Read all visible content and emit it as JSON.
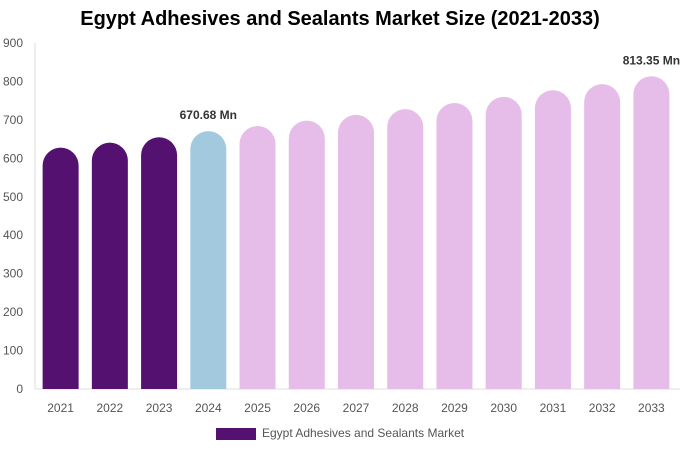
{
  "chart_data": {
    "type": "bar",
    "title": "Egypt Adhesives and Sealants Market Size (2021-2033)",
    "categories": [
      "2021",
      "2022",
      "2023",
      "2024",
      "2025",
      "2026",
      "2027",
      "2028",
      "2029",
      "2030",
      "2031",
      "2032",
      "2033"
    ],
    "series": [
      {
        "name": "Egypt Adhesives and Sealants Market",
        "values": [
          628,
          641,
          655,
          670.68,
          684,
          698,
          713,
          728,
          744,
          760,
          777,
          793,
          813.35
        ]
      }
    ],
    "data_labels": [
      {
        "index": 3,
        "text": "670.68 Mn"
      },
      {
        "index": 12,
        "text": "813.35 Mn"
      }
    ],
    "ylim": [
      0,
      900
    ],
    "yticks": [
      0,
      100,
      200,
      300,
      400,
      500,
      600,
      700,
      800,
      900
    ],
    "grid": false,
    "legend": "bottom",
    "colors": {
      "historical": "#541170",
      "base_year": "#a3c9de",
      "forecast": "#e6bce8"
    }
  }
}
